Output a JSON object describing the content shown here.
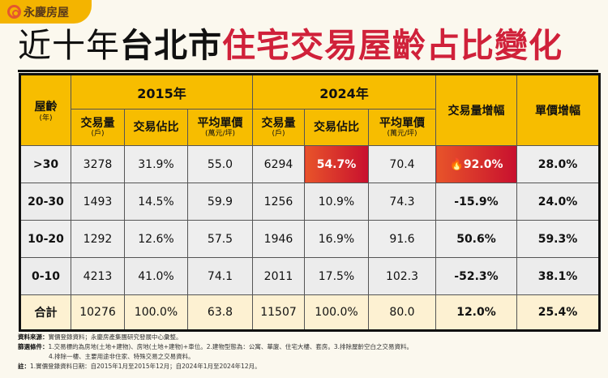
{
  "logo": {
    "text": "永慶房屋"
  },
  "title": {
    "part1": "近十年",
    "part2": "台北市",
    "part3": "住宅交易屋齡占比變化"
  },
  "header": {
    "age": "屋齡",
    "age_unit": "(年)",
    "year_a": "2015年",
    "year_b": "2024年",
    "volume": "交易量",
    "volume_unit": "(戶)",
    "share": "交易佔比",
    "price": "平均單價",
    "price_unit": "(萬元/坪)",
    "volume_growth": "交易量增幅",
    "price_growth": "單價增幅"
  },
  "chart_data": {
    "type": "table",
    "title": "近十年台北市住宅交易屋齡占比變化",
    "columns": [
      "屋齡(年)",
      "2015年 交易量(戶)",
      "2015年 交易佔比",
      "2015年 平均單價(萬元/坪)",
      "2024年 交易量(戶)",
      "2024年 交易佔比",
      "2024年 平均單價(萬元/坪)",
      "交易量增幅",
      "單價增幅"
    ],
    "rows": [
      [
        ">30",
        "3278",
        "31.9%",
        "55.0",
        "6294",
        "54.7%",
        "70.4",
        "92.0%",
        "28.0%"
      ],
      [
        "20-30",
        "1493",
        "14.5%",
        "59.9",
        "1256",
        "10.9%",
        "74.3",
        "-15.9%",
        "24.0%"
      ],
      [
        "10-20",
        "1292",
        "12.6%",
        "57.5",
        "1946",
        "16.9%",
        "91.6",
        "50.6%",
        "59.3%"
      ],
      [
        "0-10",
        "4213",
        "41.0%",
        "74.1",
        "2011",
        "17.5%",
        "102.3",
        "-52.3%",
        "38.1%"
      ],
      [
        "合計",
        "10276",
        "100.0%",
        "63.8",
        "11507",
        "100.0%",
        "80.0",
        "12.0%",
        "25.4%"
      ]
    ],
    "highlight_color": "#d42a2a",
    "header_color": "#f7bd00"
  },
  "notes": {
    "source_label": "資料來源：",
    "source": "實價登錄資料；永慶房產集團研究發展中心彙整。",
    "filter_label": "篩選條件：",
    "filter1": "1.交易標的為房地(土地+建物)、房地(土地+建物)+車位。2.建物型態為：公寓、華廈、住宅大樓、套房。3.排除屋齡空白之交易資料。",
    "filter2": "4.排除一樓、主要用途非住家、特殊交易之交易資料。",
    "note_label": "註：",
    "note": "1.實價登錄資料日期：自2015年1月至2015年12月；自2024年1月至2024年12月。"
  }
}
